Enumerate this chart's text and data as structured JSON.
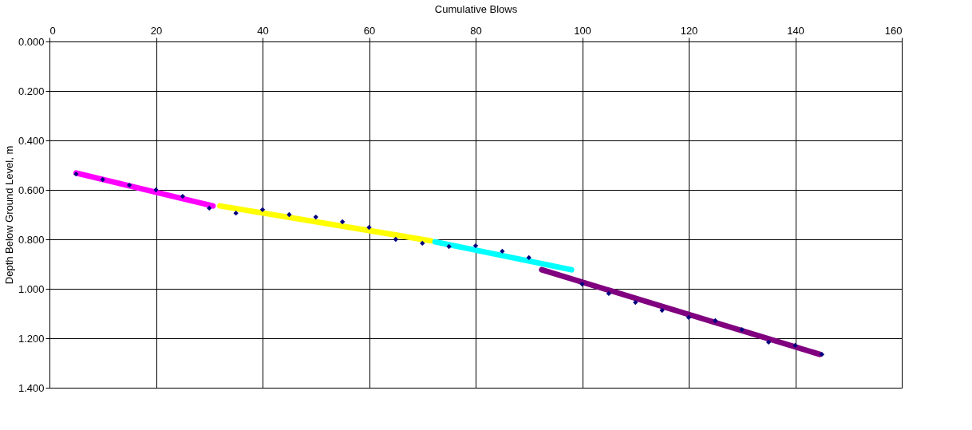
{
  "chart_data": {
    "type": "scatter",
    "xlabel": "Cumulative Blows",
    "ylabel": "Depth Below Ground Level, m",
    "xlim": [
      0,
      160
    ],
    "xticks": [
      0,
      20,
      40,
      60,
      80,
      100,
      120,
      140,
      160
    ],
    "ylim": [
      1.4,
      0
    ],
    "yticks": [
      {
        "value": 0,
        "label": "0.000"
      },
      {
        "value": 0.2,
        "label": "0.200"
      },
      {
        "value": 0.4,
        "label": "0.400"
      },
      {
        "value": 0.6,
        "label": "0.600"
      },
      {
        "value": 0.8,
        "label": "0.800"
      },
      {
        "value": 1.0,
        "label": "1.000"
      },
      {
        "value": 1.2,
        "label": "1.200"
      },
      {
        "value": 1.4,
        "label": "1.400"
      }
    ],
    "grid": true,
    "marker": "diamond",
    "x": [
      5,
      10,
      15,
      20,
      25,
      30,
      35,
      40,
      45,
      50,
      55,
      60,
      65,
      70,
      75,
      80,
      85,
      90,
      95,
      100,
      105,
      110,
      115,
      120,
      125,
      130,
      135,
      140,
      145
    ],
    "series": [
      {
        "color": "#000080",
        "values": [
          0.536,
          0.558,
          0.581,
          0.6,
          0.626,
          0.674,
          0.694,
          0.68,
          0.7,
          0.71,
          0.729,
          0.752,
          0.8,
          0.816,
          0.829,
          0.826,
          0.848,
          0.874,
          null,
          0.981,
          1.019,
          1.055,
          1.087,
          1.116,
          1.129,
          1.165,
          1.216,
          1.229,
          1.265
        ]
      },
      {
        "type": "line",
        "marker": "none",
        "color": "#ff00ff",
        "x": [
          5,
          30.7
        ],
        "values": [
          0.532,
          0.665
        ]
      },
      {
        "type": "line",
        "marker": "none",
        "color": "#ffff00",
        "x": [
          32,
          71.6
        ],
        "values": [
          0.665,
          0.806
        ]
      },
      {
        "type": "line",
        "marker": "none",
        "color": "#00ffff",
        "x": [
          72.4,
          98
        ],
        "values": [
          0.81,
          0.923
        ]
      },
      {
        "type": "line",
        "marker": "none",
        "color": "#800080",
        "x": [
          92.4,
          144.6
        ],
        "values": [
          0.923,
          1.265
        ]
      }
    ]
  }
}
